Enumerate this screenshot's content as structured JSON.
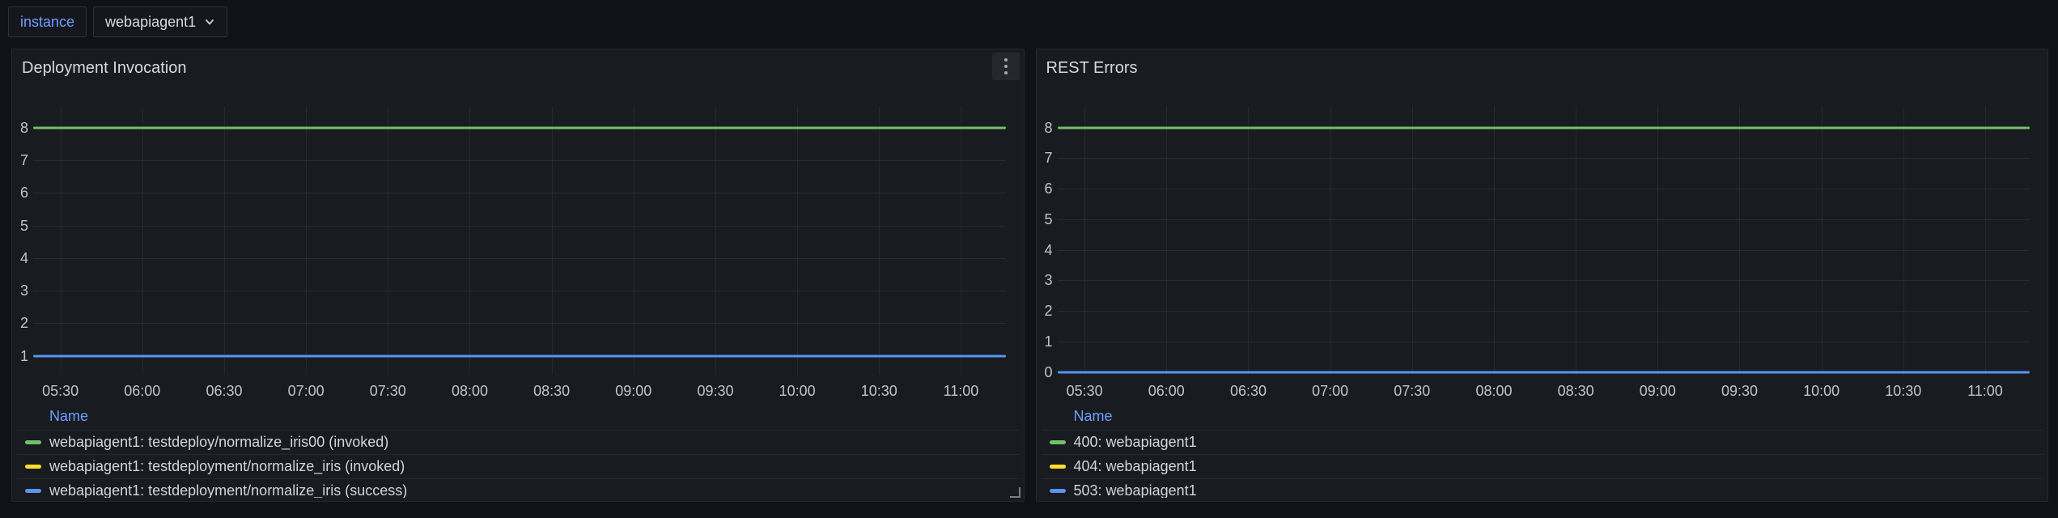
{
  "variables": {
    "label": "instance",
    "value": "webapiagent1",
    "chevron_icon": "chevron-down"
  },
  "panels": [
    {
      "title": "Deployment Invocation",
      "legend_header": "Name",
      "menu_icon": "kebab-menu"
    },
    {
      "title": "REST Errors",
      "legend_header": "Name"
    }
  ],
  "colors": {
    "page_bg": "#111217",
    "panel_bg": "#181b1f",
    "link_blue": "#6e9fff",
    "series_green": "#73bf69",
    "series_yellow": "#fade2a",
    "series_blue": "#5794f2"
  },
  "chart_data": [
    {
      "type": "line",
      "title": "Deployment Invocation",
      "x": [
        "05:30",
        "06:00",
        "06:30",
        "07:00",
        "07:30",
        "08:00",
        "08:30",
        "09:00",
        "09:30",
        "10:00",
        "10:30",
        "11:00"
      ],
      "ylabels": [
        8,
        7,
        6,
        5,
        4,
        3,
        2,
        1
      ],
      "ylim": [
        1,
        8
      ],
      "grid": true,
      "legend_position": "bottom-table",
      "series": [
        {
          "name": "webapiagent1: testdeploy/normalize_iris00 (invoked)",
          "color": "#73bf69",
          "value": 8
        },
        {
          "name": "webapiagent1: testdeployment/normalize_iris (invoked)",
          "color": "#fade2a",
          "value": null
        },
        {
          "name": "webapiagent1: testdeployment/normalize_iris (success)",
          "color": "#5794f2",
          "value": 1
        }
      ]
    },
    {
      "type": "line",
      "title": "REST Errors",
      "x": [
        "05:30",
        "06:00",
        "06:30",
        "07:00",
        "07:30",
        "08:00",
        "08:30",
        "09:00",
        "09:30",
        "10:00",
        "10:30",
        "11:00"
      ],
      "ylabels": [
        8,
        7,
        6,
        5,
        4,
        3,
        2,
        1,
        0
      ],
      "ylim": [
        0,
        8
      ],
      "grid": true,
      "legend_position": "bottom-table",
      "series": [
        {
          "name": "400: webapiagent1",
          "color": "#73bf69",
          "value": 8
        },
        {
          "name": "404: webapiagent1",
          "color": "#fade2a",
          "value": null
        },
        {
          "name": "503: webapiagent1",
          "color": "#5794f2",
          "value": 0
        }
      ]
    }
  ]
}
